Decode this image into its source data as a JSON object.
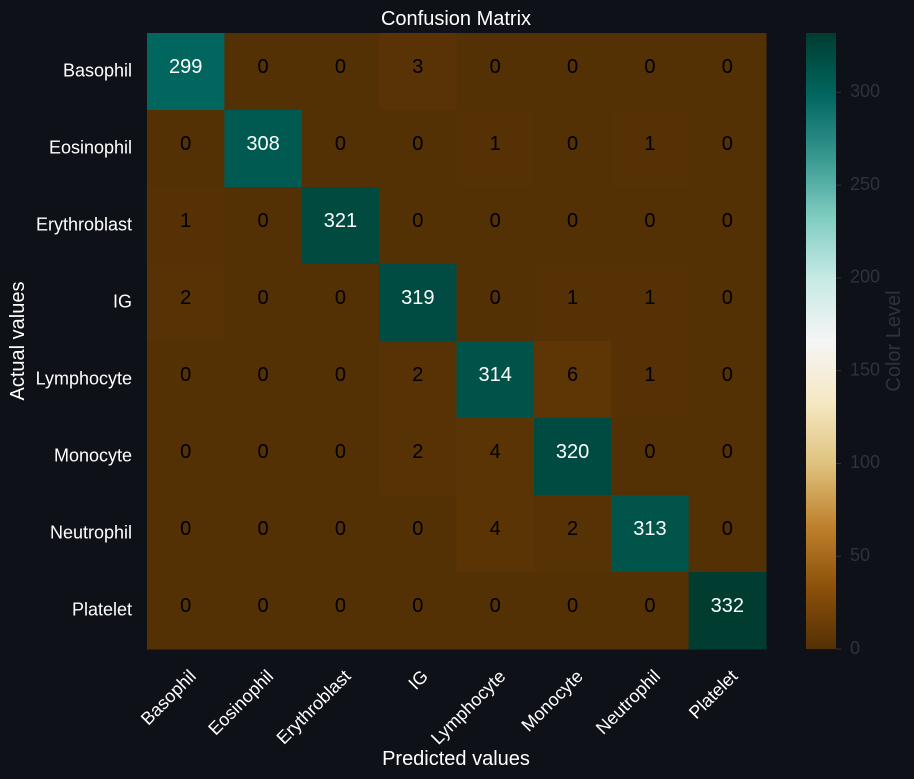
{
  "chart_data": {
    "type": "heatmap",
    "title": "Confusion Matrix",
    "xlabel": "Predicted values",
    "ylabel": "Actual values",
    "x_categories": [
      "Basophil",
      "Eosinophil",
      "Erythroblast",
      "IG",
      "Lymphocyte",
      "Monocyte",
      "Neutrophil",
      "Platelet"
    ],
    "y_categories": [
      "Basophil",
      "Eosinophil",
      "Erythroblast",
      "IG",
      "Lymphocyte",
      "Monocyte",
      "Neutrophil",
      "Platelet"
    ],
    "values": [
      [
        299,
        0,
        0,
        3,
        0,
        0,
        0,
        0
      ],
      [
        0,
        308,
        0,
        0,
        1,
        0,
        1,
        0
      ],
      [
        1,
        0,
        321,
        0,
        0,
        0,
        0,
        0
      ],
      [
        2,
        0,
        0,
        319,
        0,
        1,
        1,
        0
      ],
      [
        0,
        0,
        0,
        2,
        314,
        6,
        1,
        0
      ],
      [
        0,
        0,
        0,
        2,
        4,
        320,
        0,
        0
      ],
      [
        0,
        0,
        0,
        0,
        4,
        2,
        313,
        0
      ],
      [
        0,
        0,
        0,
        0,
        0,
        0,
        0,
        332
      ]
    ],
    "colorbar": {
      "label": "Color Level",
      "ticks": [
        0,
        50,
        100,
        150,
        200,
        250,
        300
      ],
      "range": [
        0,
        332
      ],
      "colormap": "BrBG"
    },
    "annotation_colors": {
      "dark": "#000000",
      "light": "#ffffff"
    },
    "background": "#0e1118"
  }
}
